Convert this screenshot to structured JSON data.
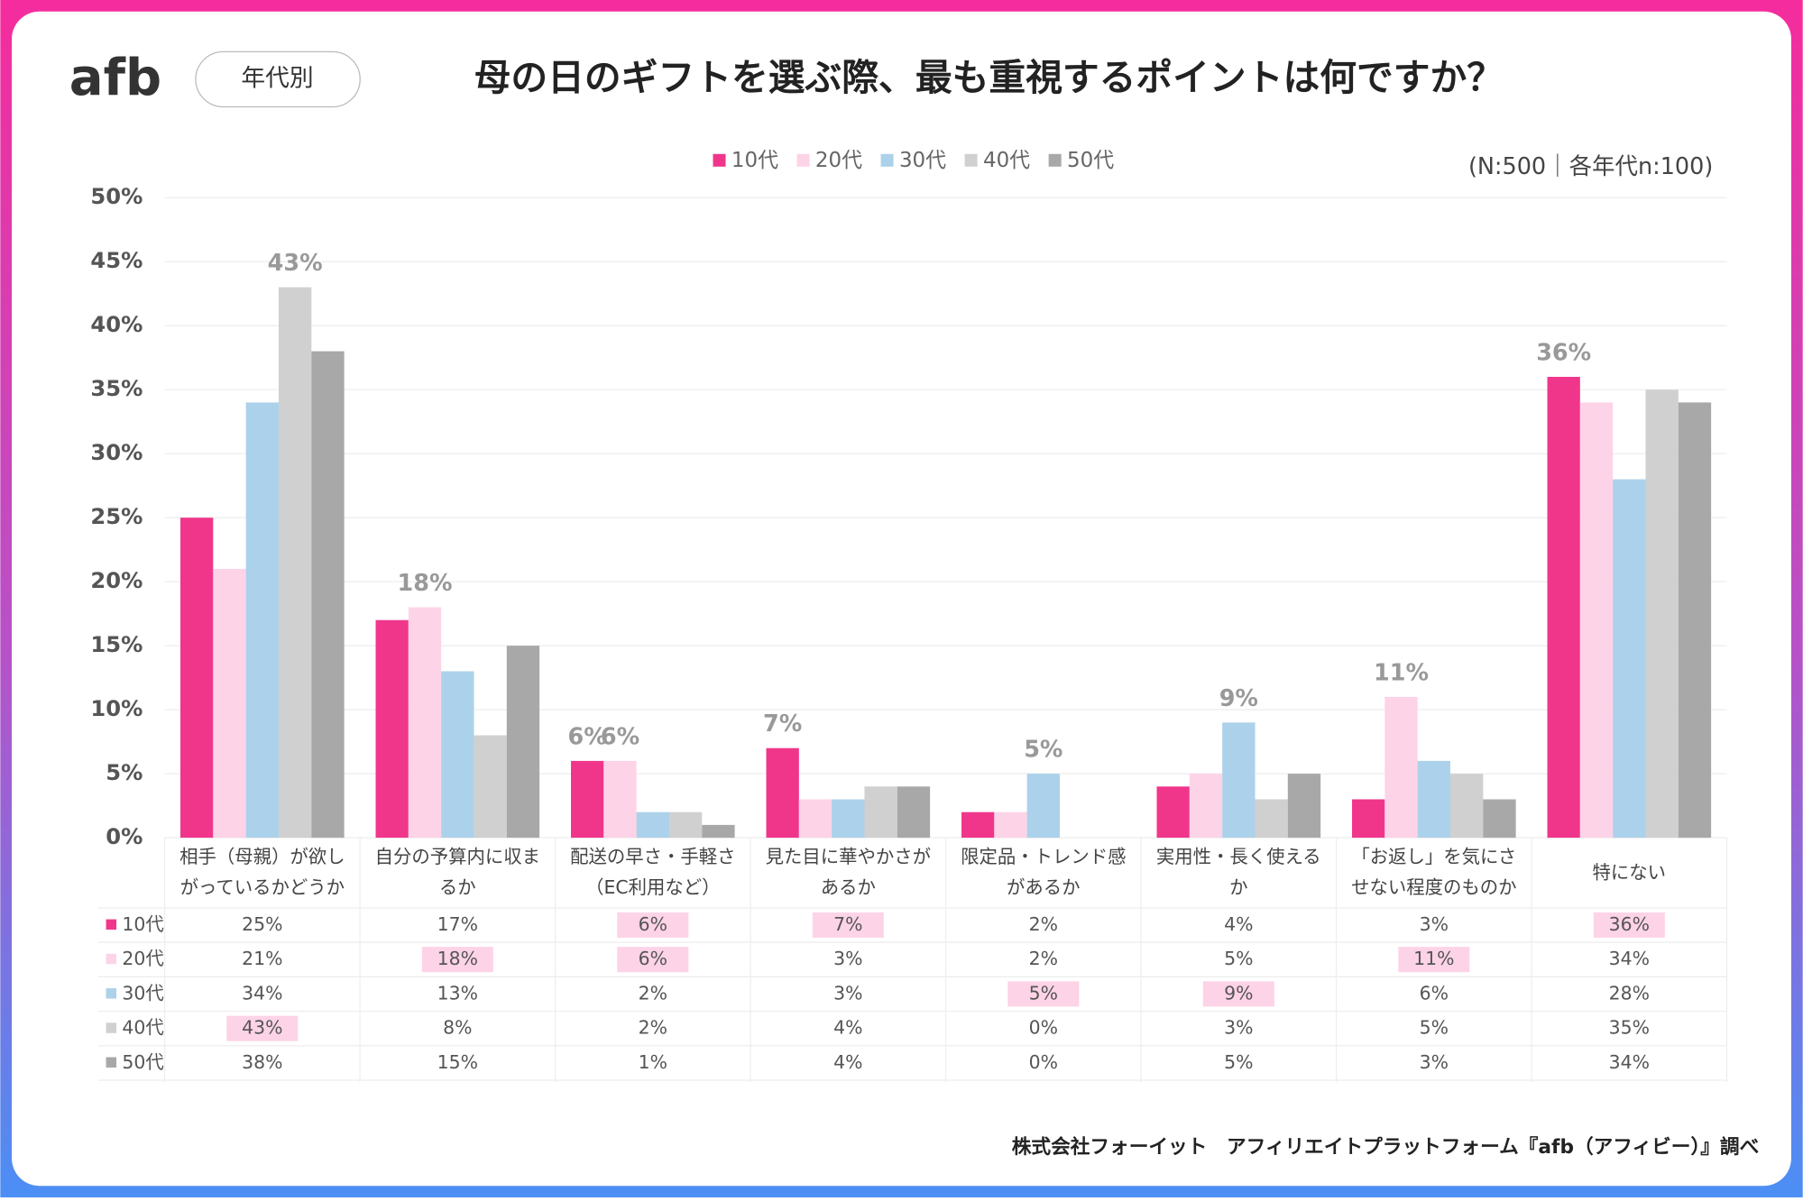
{
  "logo": "afb",
  "badge": "年代別",
  "note": "(N:500｜各年代n:100)",
  "source": "株式会社フォーイット　アフィリエイトプラットフォーム『afb（アフィビー）』調べ",
  "chart_data": {
    "type": "bar",
    "title": "母の日のギフトを選ぶ際、最も重視するポイントは何ですか？",
    "categories": [
      "相手（母親）が欲しがっているかどうか",
      "自分の予算内に収まるか",
      "配送の早さ・手軽さ（EC利用など）",
      "見た目に華やかさがあるか",
      "限定品・トレンド感があるか",
      "実用性・長く使えるか",
      "「お返し」を気にさせない程度のものか",
      "特にない"
    ],
    "series": [
      {
        "name": "10代",
        "color": "#f0368b",
        "values": [
          25,
          17,
          6,
          7,
          2,
          4,
          3,
          36
        ],
        "value_labels": [
          "25%",
          "17%",
          "6%",
          "7%",
          "2%",
          "4%",
          "3%",
          "36%"
        ]
      },
      {
        "name": "20代",
        "color": "#fdd3e7",
        "values": [
          21,
          18,
          6,
          3,
          2,
          5,
          11,
          34
        ],
        "value_labels": [
          "21%",
          "18%",
          "6%",
          "3%",
          "2%",
          "5%",
          "11%",
          "34%"
        ]
      },
      {
        "name": "30代",
        "color": "#acd1ea",
        "values": [
          34,
          13,
          2,
          3,
          5,
          9,
          6,
          28
        ],
        "value_labels": [
          "34%",
          "13%",
          "2%",
          "3%",
          "5%",
          "9%",
          "6%",
          "28%"
        ]
      },
      {
        "name": "40代",
        "color": "#d0d0d0",
        "values": [
          43,
          8,
          2,
          4,
          0,
          3,
          5,
          35
        ],
        "value_labels": [
          "43%",
          "8%",
          "2%",
          "4%",
          "0%",
          "3%",
          "5%",
          "35%"
        ]
      },
      {
        "name": "50代",
        "color": "#a8a8a8",
        "values": [
          38,
          15,
          1,
          4,
          0,
          5,
          3,
          34
        ],
        "value_labels": [
          "38%",
          "15%",
          "1%",
          "4%",
          "0%",
          "5%",
          "3%",
          "34%"
        ]
      }
    ],
    "ylim": [
      0,
      50
    ],
    "yticks": [
      {
        "value": 0,
        "label": "0%"
      },
      {
        "value": 5,
        "label": "5%"
      },
      {
        "value": 10,
        "label": "10%"
      },
      {
        "value": 15,
        "label": "15%"
      },
      {
        "value": 20,
        "label": "20%"
      },
      {
        "value": 25,
        "label": "25%"
      },
      {
        "value": 30,
        "label": "30%"
      },
      {
        "value": 35,
        "label": "35%"
      },
      {
        "value": 40,
        "label": "40%"
      },
      {
        "value": 45,
        "label": "45%"
      },
      {
        "value": 50,
        "label": "50%"
      }
    ],
    "grid": true,
    "legend": "top"
  }
}
